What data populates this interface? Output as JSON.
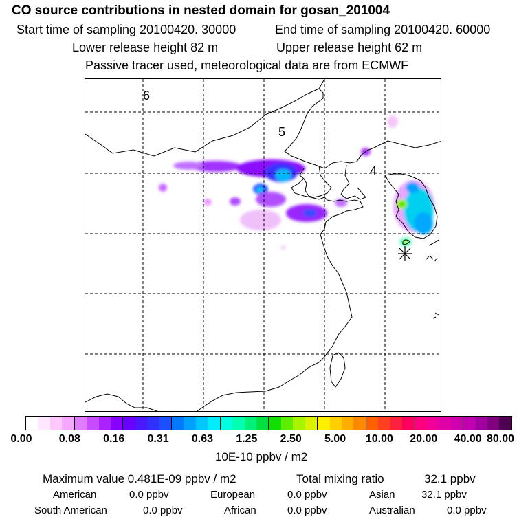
{
  "header": {
    "title": "CO  source contributions in nested domain for gosan_201004",
    "start_label": "Start time of sampling 20100420. 30000",
    "end_label": "End time of sampling 20100420. 60000",
    "lower_label": "Lower release height   82 m",
    "upper_label": "Upper release height   62 m",
    "info": "Passive tracer used, meteorological data are from ECMWF"
  },
  "map": {
    "region_labels": [
      "6",
      "5",
      "4"
    ],
    "receptor_marker": "asterisk"
  },
  "colorbar": {
    "colors": [
      "#ffffff",
      "#ffe8ff",
      "#ffc8ff",
      "#f5a8ff",
      "#e07cff",
      "#c84cff",
      "#aa22ff",
      "#8800ff",
      "#6a00ff",
      "#4a18ff",
      "#3030ff",
      "#1a50ff",
      "#0078ff",
      "#00a0ff",
      "#00c8ff",
      "#00ecff",
      "#00ffe0",
      "#00ffb0",
      "#00f07a",
      "#00e040",
      "#10e000",
      "#60ee00",
      "#a8f400",
      "#dcf000",
      "#fff000",
      "#ffd000",
      "#ffae00",
      "#ff8a00",
      "#ff6000",
      "#ff4020",
      "#ff2040",
      "#ff0060",
      "#ff0080",
      "#f00098",
      "#e000a8",
      "#d000b0",
      "#c000b0",
      "#a000a0",
      "#800080",
      "#500050"
    ],
    "tick_labels": [
      "0.00",
      "0.08",
      "0.16",
      "0.31",
      "0.63",
      "1.25",
      "2.50",
      "5.00",
      "10.00",
      "20.00",
      "40.00",
      "80.00"
    ],
    "units": "10E-10 ppbv / m2"
  },
  "stats": {
    "max_label": "Maximum value  0.481E-09 ppbv / m2",
    "total_label": "Total mixing ratio",
    "total_value": "32.1 ppbv",
    "regions": [
      {
        "name": "American",
        "value": "0.0 ppbv"
      },
      {
        "name": "European",
        "value": "0.0 ppbv"
      },
      {
        "name": "Asian",
        "value": "32.1 ppbv"
      },
      {
        "name": "South American",
        "value": "0.0 ppbv"
      },
      {
        "name": "African",
        "value": "0.0 ppbv"
      },
      {
        "name": "Australian",
        "value": "0.0 ppbv"
      }
    ]
  }
}
